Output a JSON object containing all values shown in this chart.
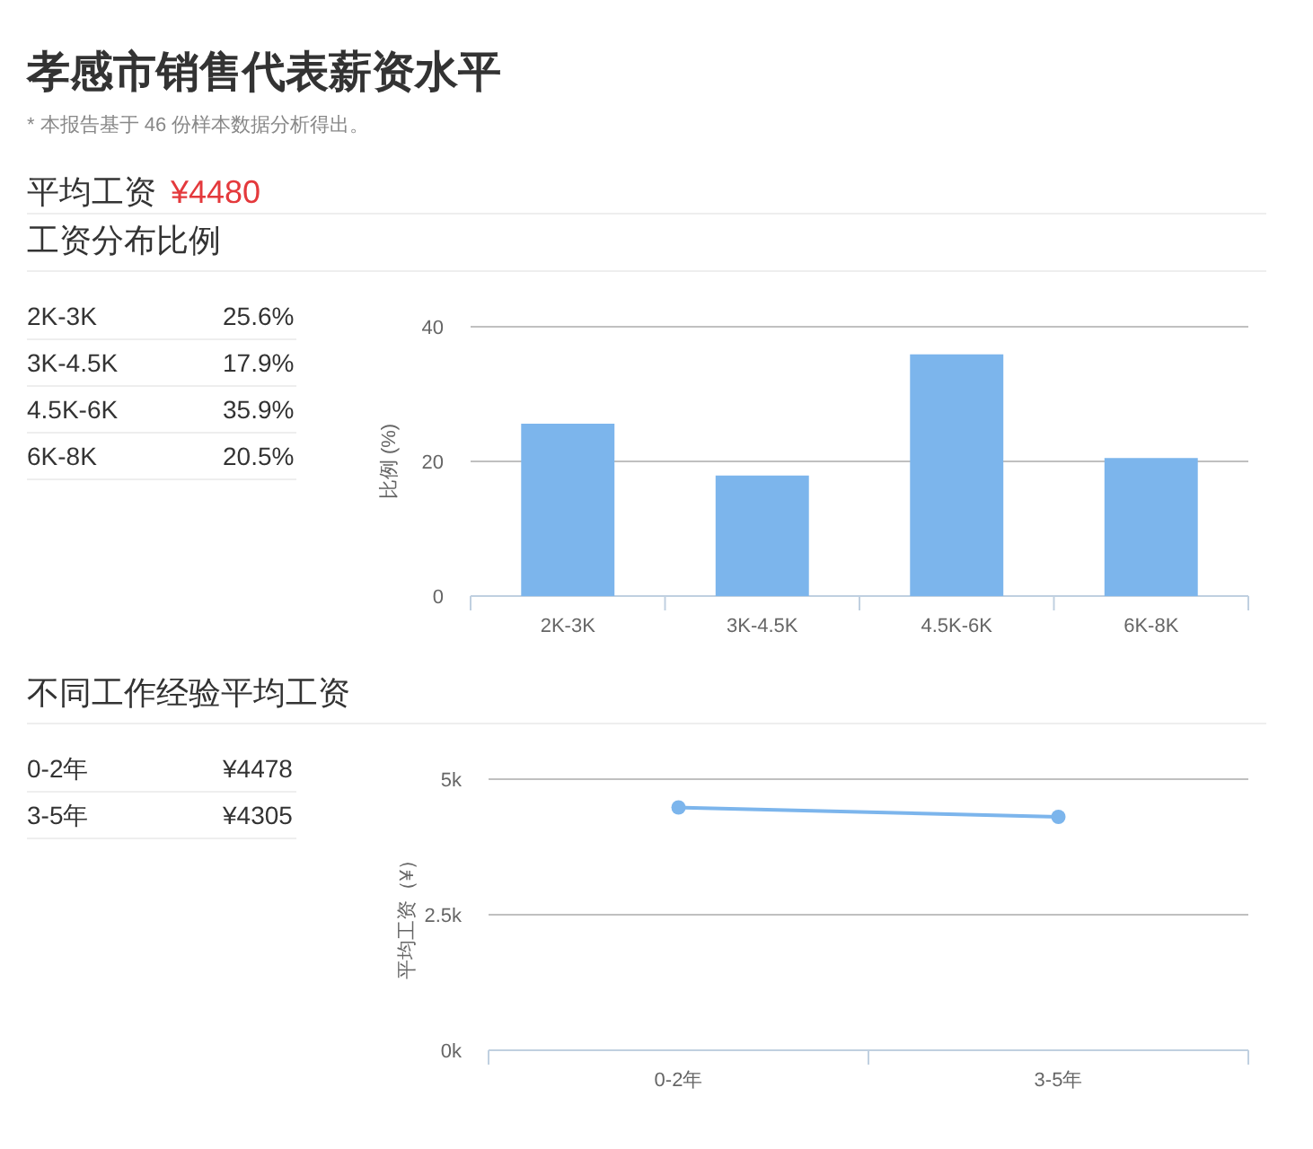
{
  "chart_data": [
    {
      "type": "other",
      "title": "孝感市销售代表薪资水平",
      "subtitle": "* 本报告基于 46 份样本数据分析得出。",
      "annotations": [
        "平均工资",
        "¥4480"
      ]
    },
    {
      "type": "other",
      "title": "工资分布比例",
      "annotations": [
        "2K-3K",
        "25.6%",
        "3K-4.5K",
        "17.9%",
        "4.5K-6K",
        "35.9%",
        "6K-8K",
        "20.5%"
      ]
    },
    {
      "type": "bar",
      "categories": [
        "2K-3K",
        "3K-4.5K",
        "4.5K-6K",
        "6K-8K"
      ],
      "values": [
        25.6,
        17.9,
        35.9,
        20.5
      ],
      "color": "#7cb5ec",
      "ylabel": "比例 (%)",
      "ylim": [
        0,
        40
      ],
      "yticks": [
        0,
        20,
        40
      ],
      "grid": "y"
    },
    {
      "type": "other",
      "title": "不同工作经验平均工资",
      "annotations": [
        "0-2年",
        "¥4478",
        "3-5年",
        "¥4305"
      ]
    },
    {
      "type": "line",
      "categories": [
        "0-2年",
        "3-5年"
      ],
      "values": [
        4478,
        4305
      ],
      "color": "#7cb5ec",
      "ylabel": "平均工资（¥）",
      "ylim": [
        0,
        5000
      ],
      "yticks": [
        {
          "value": 0,
          "label": "0k"
        },
        {
          "value": 2500,
          "label": "2.5k"
        },
        {
          "value": 5000,
          "label": "5k"
        }
      ],
      "grid": "y",
      "marker": "circle"
    }
  ]
}
